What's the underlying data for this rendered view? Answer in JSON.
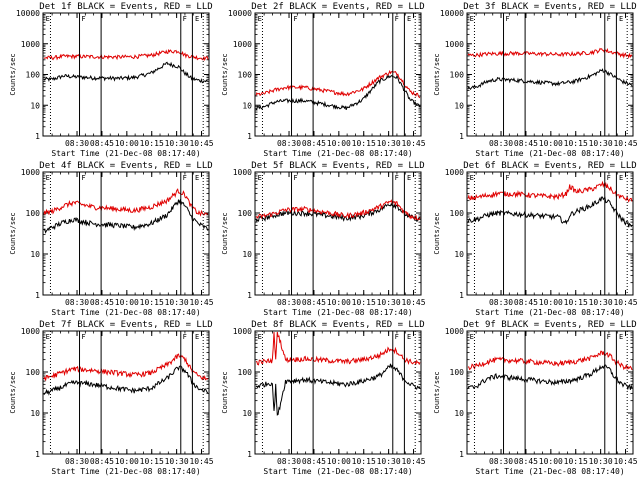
{
  "figure": {
    "x_tick_labels": [
      "08:30",
      "08:45",
      "10:00",
      "10:15",
      "10:30",
      "10:45"
    ],
    "y_tick_labels": [
      "1",
      "10",
      "100",
      "1000",
      "10000"
    ],
    "series_colors": {
      "events": "#000000",
      "lld": "#e00000"
    },
    "marker_labels": [
      "E",
      "F"
    ]
  },
  "chart_data": [
    {
      "type": "line",
      "title": "Det 1f BLACK = Events, RED = LLD",
      "xlabel": "Start Time (21-Dec-08 08:17:40)",
      "ylabel": "Counts/sec",
      "ymax": 10000,
      "x": [
        0,
        0.05,
        0.12,
        0.18,
        0.3,
        0.45,
        0.55,
        0.65,
        0.75,
        0.82,
        0.86,
        0.9,
        0.94,
        1.0
      ],
      "series": [
        {
          "values": [
            70,
            70,
            90,
            85,
            78,
            75,
            80,
            110,
            230,
            180,
            110,
            75,
            65,
            60
          ]
        },
        {
          "values": [
            350,
            350,
            390,
            390,
            380,
            370,
            380,
            420,
            560,
            580,
            430,
            390,
            350,
            340
          ]
        }
      ],
      "markers": [
        0.22,
        0.35,
        0.83,
        0.9
      ]
    },
    {
      "type": "line",
      "title": "Det 2f BLACK = Events, RED = LLD",
      "xlabel": "Start Time (21-Dec-08 08:17:40)",
      "ylabel": "Counts/sec",
      "ymax": 10000,
      "x": [
        0,
        0.05,
        0.12,
        0.18,
        0.3,
        0.45,
        0.55,
        0.65,
        0.75,
        0.82,
        0.86,
        0.9,
        0.94,
        1.0
      ],
      "series": [
        {
          "values": [
            8,
            9,
            13,
            14,
            14,
            10,
            8,
            15,
            60,
            90,
            80,
            35,
            15,
            9
          ]
        },
        {
          "values": [
            22,
            24,
            32,
            38,
            38,
            28,
            23,
            33,
            80,
            120,
            110,
            55,
            28,
            20
          ]
        }
      ],
      "markers": [
        0.22,
        0.35,
        0.83,
        0.9
      ]
    },
    {
      "type": "line",
      "title": "Det 3f BLACK = Events, RED = LLD",
      "xlabel": "Start Time (21-Dec-08 08:17:40)",
      "ylabel": "Counts/sec",
      "ymax": 10000,
      "x": [
        0,
        0.05,
        0.12,
        0.18,
        0.3,
        0.45,
        0.55,
        0.65,
        0.75,
        0.82,
        0.86,
        0.9,
        0.94,
        1.0
      ],
      "series": [
        {
          "values": [
            35,
            40,
            60,
            70,
            65,
            55,
            50,
            60,
            90,
            140,
            110,
            80,
            60,
            45
          ]
        },
        {
          "values": [
            420,
            430,
            470,
            480,
            490,
            470,
            450,
            470,
            520,
            650,
            560,
            500,
            440,
            400
          ]
        }
      ],
      "markers": [
        0.22,
        0.35,
        0.83,
        0.9
      ]
    },
    {
      "type": "line",
      "title": "Det 4f BLACK = Events, RED = LLD",
      "xlabel": "Start Time (21-Dec-08 08:17:40)",
      "ylabel": "Counts/sec",
      "ymax": 1000,
      "x": [
        0,
        0.05,
        0.12,
        0.18,
        0.3,
        0.45,
        0.55,
        0.65,
        0.75,
        0.82,
        0.86,
        0.9,
        0.94,
        1.0
      ],
      "series": [
        {
          "values": [
            35,
            45,
            60,
            70,
            55,
            50,
            45,
            55,
            90,
            200,
            150,
            80,
            55,
            40
          ]
        },
        {
          "values": [
            100,
            110,
            150,
            180,
            140,
            125,
            115,
            140,
            200,
            350,
            280,
            140,
            100,
            90
          ]
        }
      ],
      "markers": [
        0.22,
        0.35,
        0.83,
        0.9
      ]
    },
    {
      "type": "line",
      "title": "Det 5f BLACK = Events, RED = LLD",
      "xlabel": "Start Time (21-Dec-08 08:17:40)",
      "ylabel": "Counts/sec",
      "ymax": 1000,
      "x": [
        0,
        0.05,
        0.12,
        0.18,
        0.3,
        0.45,
        0.55,
        0.65,
        0.75,
        0.82,
        0.86,
        0.9,
        0.94,
        1.0
      ],
      "series": [
        {
          "values": [
            70,
            75,
            90,
            100,
            100,
            85,
            75,
            85,
            120,
            170,
            150,
            100,
            80,
            70
          ]
        },
        {
          "values": [
            80,
            85,
            100,
            120,
            125,
            100,
            85,
            100,
            140,
            190,
            170,
            110,
            85,
            75
          ]
        }
      ],
      "markers": [
        0.22,
        0.35,
        0.83,
        0.9
      ]
    },
    {
      "type": "line",
      "title": "Det 6f BLACK = Events, RED = LLD",
      "xlabel": "Start Time (21-Dec-08 08:17:40)",
      "ylabel": "Counts/sec",
      "ymax": 1000,
      "x": [
        0,
        0.05,
        0.12,
        0.18,
        0.3,
        0.45,
        0.55,
        0.6,
        0.62,
        0.66,
        0.75,
        0.82,
        0.86,
        0.9,
        0.94,
        1.0
      ],
      "series": [
        {
          "values": [
            65,
            70,
            90,
            100,
            95,
            85,
            80,
            55,
            90,
            110,
            150,
            230,
            180,
            110,
            70,
            45
          ]
        },
        {
          "values": [
            230,
            240,
            270,
            300,
            290,
            260,
            250,
            300,
            450,
            330,
            380,
            500,
            420,
            290,
            240,
            200
          ]
        }
      ],
      "markers": [
        0.22,
        0.35,
        0.83,
        0.9
      ]
    },
    {
      "type": "line",
      "title": "Det 7f BLACK = Events, RED = LLD",
      "xlabel": "Start Time (21-Dec-08 08:17:40)",
      "ylabel": "Counts/sec",
      "ymax": 1000,
      "x": [
        0,
        0.05,
        0.12,
        0.18,
        0.3,
        0.45,
        0.55,
        0.65,
        0.75,
        0.82,
        0.86,
        0.9,
        0.94,
        1.0
      ],
      "series": [
        {
          "values": [
            30,
            35,
            45,
            55,
            50,
            40,
            35,
            40,
            70,
            130,
            110,
            60,
            40,
            32
          ]
        },
        {
          "values": [
            70,
            80,
            100,
            120,
            110,
            95,
            85,
            95,
            150,
            250,
            210,
            110,
            80,
            65
          ]
        }
      ],
      "markers": [
        0.22,
        0.35,
        0.83,
        0.9
      ]
    },
    {
      "type": "line",
      "title": "Det 8f BLACK = Events, RED = LLD",
      "xlabel": "Start Time (21-Dec-08 08:17:40)",
      "ylabel": "Counts/sec",
      "ymax": 1000,
      "x": [
        0,
        0.05,
        0.1,
        0.11,
        0.12,
        0.13,
        0.18,
        0.3,
        0.45,
        0.55,
        0.65,
        0.75,
        0.82,
        0.86,
        0.9,
        0.94,
        1.0
      ],
      "series": [
        {
          "values": [
            45,
            50,
            55,
            10,
            50,
            8,
            60,
            65,
            55,
            50,
            60,
            80,
            140,
            110,
            70,
            50,
            40
          ]
        },
        {
          "values": [
            170,
            180,
            190,
            1000,
            190,
            1000,
            200,
            210,
            190,
            180,
            200,
            250,
            380,
            320,
            210,
            180,
            160
          ]
        }
      ],
      "markers": [
        0.22,
        0.35,
        0.83,
        0.9
      ]
    },
    {
      "type": "line",
      "title": "Det 9f BLACK = Events, RED = LLD",
      "xlabel": "Start Time (21-Dec-08 08:17:40)",
      "ylabel": "Counts/sec",
      "ymax": 1000,
      "x": [
        0,
        0.05,
        0.12,
        0.18,
        0.3,
        0.45,
        0.55,
        0.65,
        0.75,
        0.82,
        0.86,
        0.9,
        0.94,
        1.0
      ],
      "series": [
        {
          "values": [
            40,
            45,
            70,
            80,
            70,
            60,
            55,
            65,
            90,
            140,
            120,
            70,
            50,
            40
          ]
        },
        {
          "values": [
            130,
            140,
            180,
            200,
            190,
            170,
            160,
            180,
            220,
            300,
            260,
            180,
            140,
            120
          ]
        }
      ],
      "markers": [
        0.22,
        0.35,
        0.83,
        0.9
      ]
    }
  ]
}
